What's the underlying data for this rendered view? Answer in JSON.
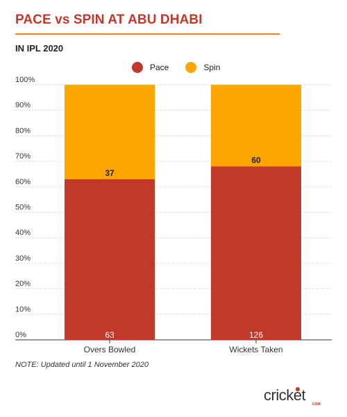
{
  "header": {
    "title": "PACE vs SPIN AT ABU DHABI",
    "subtitle": "IN IPL 2020"
  },
  "note": "NOTE: Updated until 1 November 2020",
  "logo": {
    "name": "cricket.com",
    "word": "cricket",
    "suffix": "COM"
  },
  "colors": {
    "pace": "#c0392b",
    "spin": "#ffa500",
    "accent": "#f07d2a"
  },
  "chart_data": {
    "type": "bar",
    "stacked": "percent",
    "categories": [
      "Overs Bowled",
      "Wickets Taken"
    ],
    "series": [
      {
        "name": "Pace",
        "values": [
          63,
          126
        ],
        "percent": [
          63,
          68
        ]
      },
      {
        "name": "Spin",
        "values": [
          37,
          60
        ],
        "percent": [
          37,
          32
        ]
      }
    ],
    "y_ticks": [
      "0%",
      "10%",
      "20%",
      "30%",
      "40%",
      "50%",
      "60%",
      "70%",
      "80%",
      "90%",
      "100%"
    ],
    "ylim": [
      0,
      100
    ],
    "legend": "top-center",
    "grid": true
  }
}
